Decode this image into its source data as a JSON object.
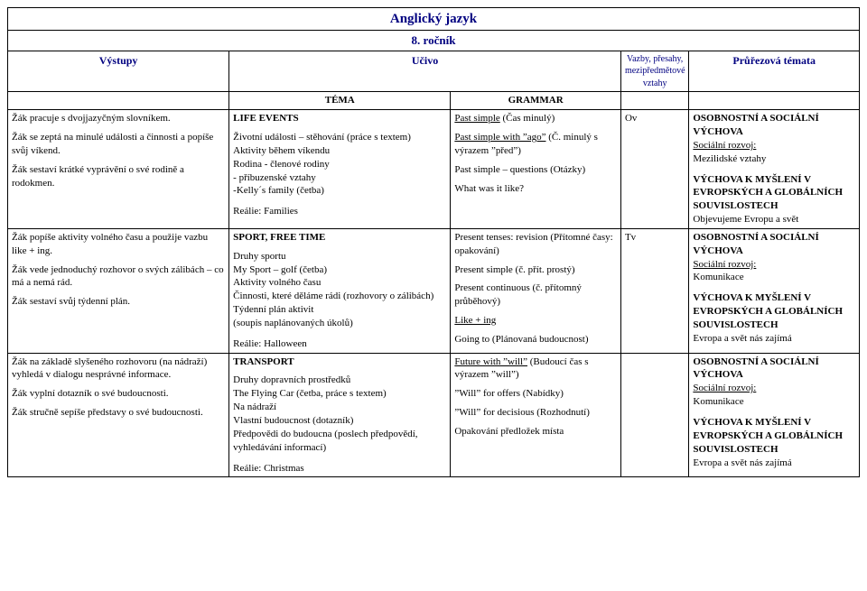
{
  "header": {
    "title": "Anglický jazyk",
    "subtitle": "8. ročník",
    "columns": {
      "c1": "Výstupy",
      "c2": "Učivo",
      "c3": "Vazby, přesahy, mezipředmětové vztahy",
      "c4": "Průřezová témata"
    },
    "theme_col2": "TÉMA",
    "theme_col3": "GRAMMAR"
  },
  "rows": [
    {
      "outputs": [
        "Žák pracuje s dvojjazyčným slovníkem.",
        "Žák se zeptá na minulé události a činnosti a popíše svůj víkend.",
        "Žák sestaví krátké vyprávění o své rodině a rodokmen."
      ],
      "ucivo": {
        "title": "LIFE EVENTS",
        "lines": [
          "Životní události – stěhování (práce s textem)",
          "Aktivity během víkendu",
          "Rodina - členové rodiny",
          "          - příbuzenské vztahy",
          "          -Kelly´s family (četba)"
        ],
        "realie": "Reálie: Families"
      },
      "grammar": [
        {
          "text": "Past simple",
          "u": true,
          "after": " (Čas minulý)"
        },
        {
          "text": "Past simple with ˮagoˮ",
          "u": true,
          "after": " (Č. minulý s výrazem ˮpředˮ)"
        },
        {
          "plain": "Past simple – questions (Otázky)"
        },
        {
          "plain": "What was it like?"
        }
      ],
      "vazby": "Ov",
      "prurezova": [
        {
          "b": "OSOBNOSTNÍ A SOCIÁLNÍ VÝCHOVA"
        },
        {
          "u": "Sociální rozvoj:"
        },
        {
          "plain": "Mezilidské vztahy"
        },
        {
          "gap": true
        },
        {
          "b": "VÝCHOVA K MYŠLENÍ V EVROPSKÝCH A GLOBÁLNÍCH SOUVISLOSTECH"
        },
        {
          "plain": "Objevujeme Evropu a svět"
        }
      ]
    },
    {
      "outputs": [
        "Žák popíše aktivity volného času a použije vazbu like + ing.",
        "Žák vede jednoduchý rozhovor o svých zálibách – co má a nemá rád.",
        "Žák sestaví svůj týdenní plán."
      ],
      "ucivo": {
        "title": "SPORT, FREE TIME",
        "lines": [
          "Druhy sportu",
          "My Sport – golf (četba)",
          "Aktivity volného času",
          "Činnosti, které děláme rádi (rozhovory o zálibách)",
          "Týdenní plán aktivit",
          "(soupis naplánovaných úkolů)"
        ],
        "realie": "Reálie: Halloween"
      },
      "grammar": [
        {
          "plain": "Present tenses: revision (Přítomné časy: opakování)"
        },
        {
          "plain": "Present simple (č. přít. prostý)"
        },
        {
          "plain": "Present continuous (č. přítomný průběhový)"
        },
        {
          "text": "Like + ing",
          "u": true,
          "after": ""
        },
        {
          "plain": "Going to (Plánovaná budoucnost)"
        }
      ],
      "vazby": "Tv",
      "prurezova": [
        {
          "b": "OSOBNOSTNÍ A SOCIÁLNÍ VÝCHOVA"
        },
        {
          "u": "Sociální rozvoj:"
        },
        {
          "plain": "Komunikace"
        },
        {
          "gap": true
        },
        {
          "b": "VÝCHOVA K MYŠLENÍ V EVROPSKÝCH A GLOBÁLNÍCH SOUVISLOSTECH"
        },
        {
          "plain": "Evropa a svět nás zajímá"
        }
      ]
    },
    {
      "outputs": [
        "Žák na základě slyšeného rozhovoru (na nádraží) vyhledá v dialogu nesprávné informace.",
        "Žák vyplní dotazník o své budoucnosti.",
        "Žák stručně sepíše představy o své budoucnosti."
      ],
      "ucivo": {
        "title": "TRANSPORT",
        "lines": [
          "Druhy dopravních prostředků",
          "The Flying Car (četba, práce s textem)",
          "Na nádraží",
          "Vlastní budoucnost (dotazník)",
          "Předpovědi do budoucna (poslech předpovědí, vyhledávání informací)"
        ],
        "realie": "Reálie: Christmas"
      },
      "grammar": [
        {
          "text": "Future with ˮwillˮ",
          "u": true,
          "after": " (Budoucí čas s výrazem ˮwillˮ)"
        },
        {
          "plain": "ˮWillˮ for offers (Nabídky)"
        },
        {
          "plain": "ˮWillˮ for decisious (Rozhodnutí)"
        },
        {
          "plain": "Opakování předložek místa"
        }
      ],
      "vazby": "",
      "prurezova": [
        {
          "b": "OSOBNOSTNÍ A SOCIÁLNÍ VÝCHOVA"
        },
        {
          "u": "Sociální rozvoj:"
        },
        {
          "plain": "Komunikace"
        },
        {
          "gap": true
        },
        {
          "b": "VÝCHOVA K MYŠLENÍ V EVROPSKÝCH A GLOBÁLNÍCH SOUVISLOSTECH"
        },
        {
          "plain": "Evropa a svět nás zajímá"
        }
      ]
    }
  ]
}
